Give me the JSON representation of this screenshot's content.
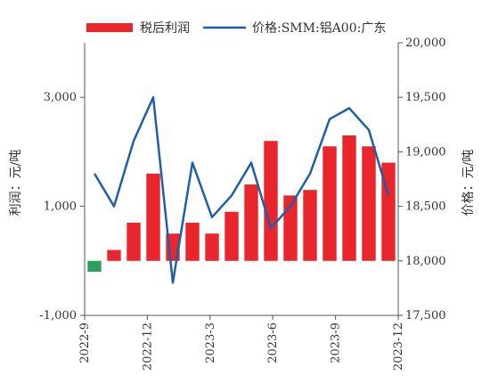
{
  "chart_data": {
    "type": "bar+line",
    "legend": {
      "placement": "top",
      "items": [
        "税后利润",
        "价格:SMM:铝A00:广东"
      ]
    },
    "grid": false,
    "y_left": {
      "label": "利润：元/吨",
      "range": [
        -1000,
        4000
      ],
      "ticks": [
        -1000,
        1000,
        3000
      ],
      "tick_labels": [
        "-1,000",
        "1,000",
        "3,000"
      ]
    },
    "y_right": {
      "label": "价格：元/吨",
      "range": [
        17500,
        20000
      ],
      "ticks": [
        17500,
        18000,
        18500,
        19000,
        19500,
        20000
      ],
      "tick_labels": [
        "17,500",
        "18,000",
        "18,500",
        "19,000",
        "19,500",
        "20,000"
      ]
    },
    "x_ticks": [
      "2022-9",
      "2022-12",
      "2023-3",
      "2023-6",
      "2023-9",
      "2023-12"
    ],
    "series": [
      {
        "name": "税后利润",
        "kind": "bar",
        "axis": "left",
        "x": [
          "2022-9",
          "2022-10",
          "2022-11",
          "2022-12",
          "2023-1",
          "2023-2",
          "2023-3",
          "2023-4",
          "2023-5",
          "2023-6",
          "2023-7",
          "2023-8",
          "2023-9",
          "2023-10",
          "2023-11",
          "2023-12"
        ],
        "values": [
          -200,
          200,
          700,
          1600,
          500,
          700,
          500,
          900,
          1400,
          2200,
          1200,
          1300,
          2100,
          2300,
          2100,
          1800
        ]
      },
      {
        "name": "价格:SMM:铝A00:广东",
        "kind": "line",
        "axis": "right",
        "x": [
          "2022-9",
          "2022-10",
          "2022-11",
          "2022-12",
          "2023-1",
          "2023-2",
          "2023-3",
          "2023-4",
          "2023-5",
          "2023-6",
          "2023-7",
          "2023-8",
          "2023-9",
          "2023-10",
          "2023-11",
          "2023-12"
        ],
        "values": [
          18800,
          18500,
          19100,
          19500,
          17800,
          18900,
          18400,
          18600,
          18900,
          18300,
          18500,
          18800,
          19300,
          19400,
          19200,
          18600
        ]
      }
    ],
    "colors": {
      "bar_positive": "#e8262b",
      "bar_negative": "#2e9e5b",
      "line": "#1f5fa8",
      "axis": "#555555"
    }
  }
}
